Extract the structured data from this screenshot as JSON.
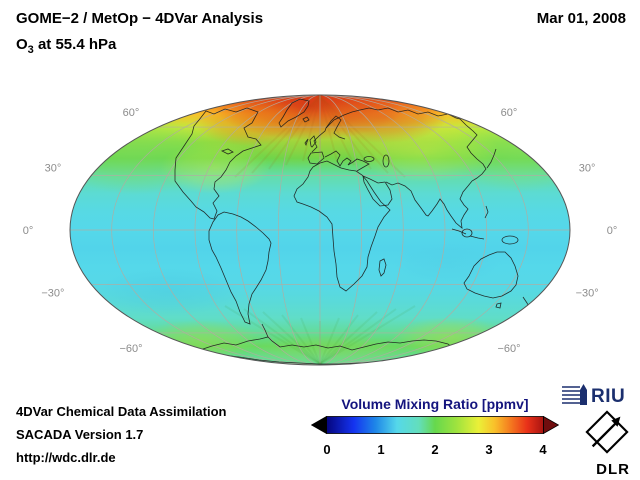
{
  "header": {
    "title": "GOME−2 / MetOp − 4DVar Analysis",
    "subtitle_prefix": "O",
    "subtitle_sub": "3",
    "subtitle_rest": " at 55.4 hPa",
    "date": "Mar 01, 2008"
  },
  "footer": {
    "line1": "4DVar Chemical Data Assimilation",
    "line2": "SACADA Version 1.7",
    "line3": "http://wdc.dlr.de"
  },
  "colorbar": {
    "title": "Volume Mixing Ratio [ppmv]",
    "ticks": [
      "0",
      "1",
      "2",
      "3",
      "4"
    ]
  },
  "logos": {
    "riu": "RIU",
    "dlr": "DLR"
  },
  "map": {
    "latitude_labels": [
      {
        "lat": 60,
        "text": "60°"
      },
      {
        "lat": 30,
        "text": "30°"
      },
      {
        "lat": 0,
        "text": "0°"
      },
      {
        "lat": -30,
        "text": "−30°"
      },
      {
        "lat": -60,
        "text": "−60°"
      }
    ]
  },
  "colors": {
    "navy_text": "#14147E",
    "logo_navy": "#1B2F6E",
    "under_range": "#000000",
    "over_range": "#700D0E",
    "grid": "#B3ACA0",
    "label_gray": "#8C8C8C",
    "continent": "#1B1B1B",
    "map_outline": "#555555"
  },
  "chart_data": {
    "type": "heatmap",
    "title": "GOME−2 / MetOp − 4DVar Analysis",
    "variable": "O3 volume mixing ratio",
    "level": "55.4 hPa",
    "date": "Mar 01, 2008",
    "units": "ppmv",
    "projection": "Mollweide global",
    "colorbar_label": "Volume Mixing Ratio [ppmv]",
    "range": [
      0,
      4
    ],
    "ticks": [
      0,
      1,
      2,
      3,
      4
    ],
    "colormap": [
      {
        "v": 0.0,
        "c": "#05057d"
      },
      {
        "v": 0.5,
        "c": "#1433f0"
      },
      {
        "v": 0.9,
        "c": "#1e86e8"
      },
      {
        "v": 1.3,
        "c": "#55d8ea"
      },
      {
        "v": 1.7,
        "c": "#63debc"
      },
      {
        "v": 2.0,
        "c": "#66d84d"
      },
      {
        "v": 2.4,
        "c": "#9fe33e"
      },
      {
        "v": 2.8,
        "c": "#eaf038"
      },
      {
        "v": 3.1,
        "c": "#f9c02a"
      },
      {
        "v": 3.4,
        "c": "#f4781f"
      },
      {
        "v": 3.7,
        "c": "#e93119"
      },
      {
        "v": 4.0,
        "c": "#a81411"
      }
    ],
    "zonal_mean": {
      "latitudes": [
        90,
        80,
        70,
        60,
        50,
        40,
        30,
        20,
        10,
        0,
        -10,
        -20,
        -30,
        -40,
        -50,
        -60,
        -70,
        -80,
        -90
      ],
      "values_ppmv": [
        3.5,
        3.4,
        3.1,
        2.6,
        2.25,
        2.0,
        1.75,
        1.5,
        1.35,
        1.3,
        1.28,
        1.3,
        1.33,
        1.45,
        1.6,
        1.8,
        1.95,
        1.8,
        1.75
      ]
    },
    "features": [
      "Arctic maximum of about 3.3-3.8 ppmv over Greenland and the Arctic Ocean",
      "Tropics and southern mid-latitudes near 1.2-1.5 ppmv (cyan)",
      "Green ring of about 1.8-2.2 ppmv around the Antarctic coast"
    ]
  }
}
